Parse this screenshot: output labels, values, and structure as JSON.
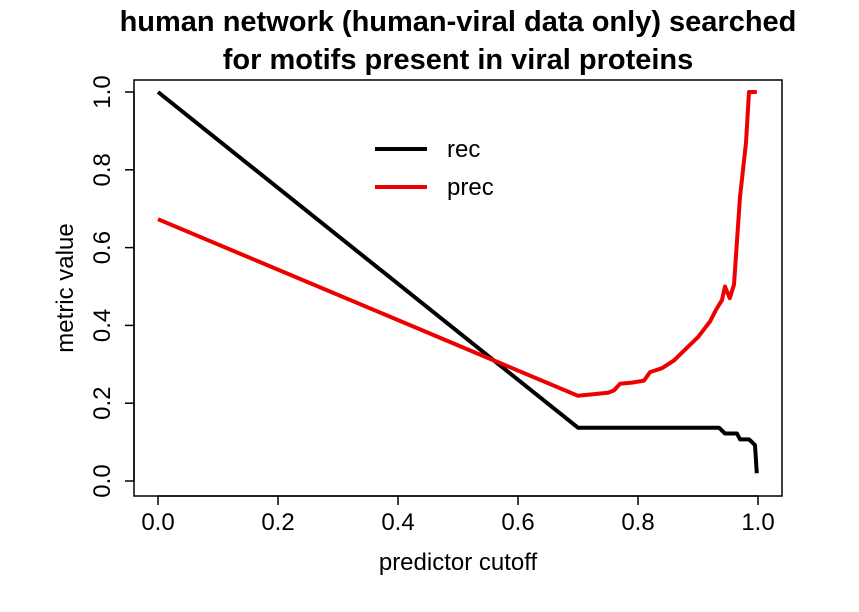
{
  "chart_data": {
    "type": "line",
    "title_lines": [
      "human network (human-viral data only) searched",
      "for motifs present in viral proteins"
    ],
    "xlabel": "predictor cutoff",
    "ylabel": "metric value",
    "xlim": [
      0,
      1
    ],
    "ylim": [
      0,
      1
    ],
    "x_ticks": [
      "0.0",
      "0.2",
      "0.4",
      "0.6",
      "0.8",
      "1.0"
    ],
    "y_ticks": [
      "0.0",
      "0.2",
      "0.4",
      "0.6",
      "0.8",
      "1.0"
    ],
    "grid": false,
    "legend_position": "top-center",
    "series": [
      {
        "name": "rec",
        "color": "#000000",
        "points": [
          [
            0.0,
            1.0
          ],
          [
            0.7,
            0.137
          ],
          [
            0.935,
            0.137
          ],
          [
            0.945,
            0.122
          ],
          [
            0.965,
            0.122
          ],
          [
            0.97,
            0.107
          ],
          [
            0.985,
            0.107
          ],
          [
            0.99,
            0.1
          ],
          [
            0.995,
            0.092
          ],
          [
            0.998,
            0.02
          ]
        ]
      },
      {
        "name": "prec",
        "color": "#ee0000",
        "points": [
          [
            0.0,
            0.673
          ],
          [
            0.7,
            0.219
          ],
          [
            0.75,
            0.227
          ],
          [
            0.76,
            0.233
          ],
          [
            0.77,
            0.25
          ],
          [
            0.79,
            0.253
          ],
          [
            0.81,
            0.258
          ],
          [
            0.82,
            0.28
          ],
          [
            0.84,
            0.29
          ],
          [
            0.86,
            0.31
          ],
          [
            0.88,
            0.34
          ],
          [
            0.9,
            0.37
          ],
          [
            0.91,
            0.39
          ],
          [
            0.92,
            0.41
          ],
          [
            0.93,
            0.44
          ],
          [
            0.94,
            0.465
          ],
          [
            0.945,
            0.5
          ],
          [
            0.953,
            0.47
          ],
          [
            0.96,
            0.505
          ],
          [
            0.97,
            0.73
          ],
          [
            0.98,
            0.87
          ],
          [
            0.985,
            1.0
          ],
          [
            0.998,
            1.0
          ]
        ]
      }
    ]
  }
}
